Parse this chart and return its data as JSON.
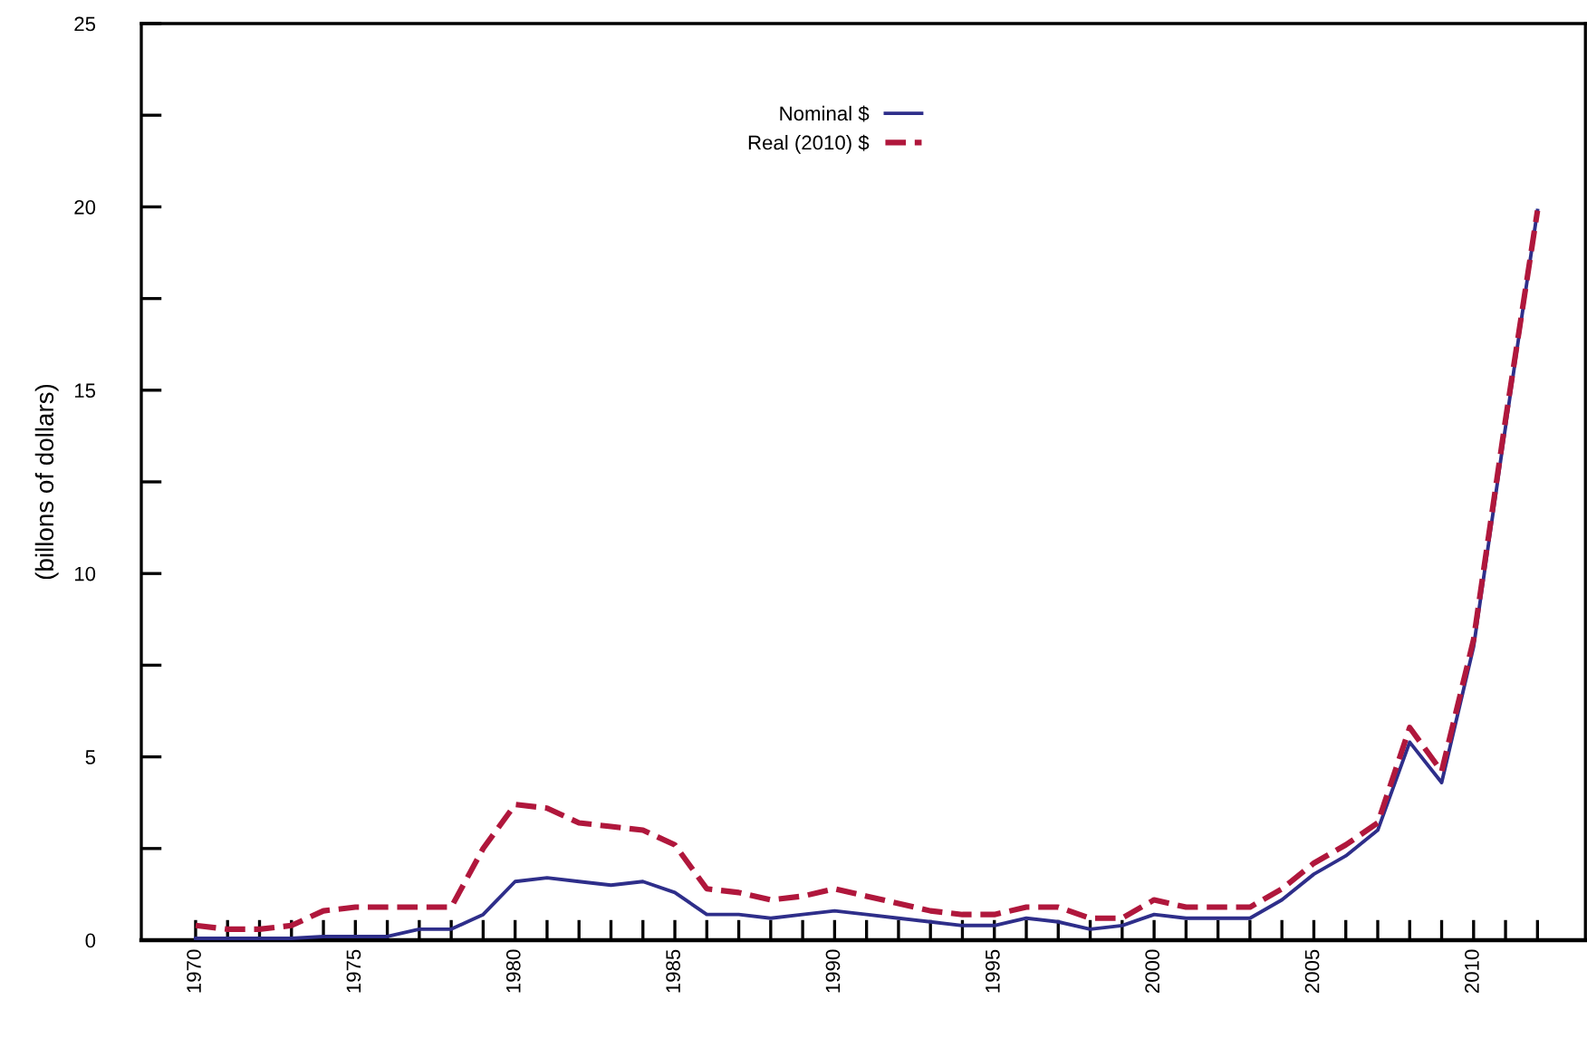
{
  "chart_data": {
    "type": "line",
    "ylabel": "(billons of dollars)",
    "legend": "top",
    "x": [
      1970,
      1971,
      1972,
      1973,
      1974,
      1975,
      1976,
      1977,
      1978,
      1979,
      1980,
      1981,
      1982,
      1983,
      1984,
      1985,
      1986,
      1987,
      1988,
      1989,
      1990,
      1991,
      1992,
      1993,
      1994,
      1995,
      1996,
      1997,
      1998,
      1999,
      2000,
      2001,
      2002,
      2003,
      2004,
      2005,
      2006,
      2007,
      2008,
      2009,
      2010,
      2011,
      2012
    ],
    "series": [
      {
        "name": "Nominal $",
        "color": "#2e2e8a",
        "line_style": "solid",
        "values": [
          0.05,
          0.05,
          0.05,
          0.05,
          0.1,
          0.1,
          0.1,
          0.3,
          0.3,
          0.7,
          1.6,
          1.7,
          1.6,
          1.5,
          1.6,
          1.3,
          0.7,
          0.7,
          0.6,
          0.7,
          0.8,
          0.7,
          0.6,
          0.5,
          0.4,
          0.4,
          0.6,
          0.5,
          0.3,
          0.4,
          0.7,
          0.6,
          0.6,
          0.6,
          1.1,
          1.8,
          2.3,
          3.0,
          5.4,
          4.3,
          8.0,
          14.0,
          19.9
        ]
      },
      {
        "name": "Real (2010) $",
        "color": "#b0173c",
        "line_style": "dashed",
        "values": [
          0.4,
          0.3,
          0.3,
          0.4,
          0.8,
          0.9,
          0.9,
          0.9,
          0.9,
          2.5,
          3.7,
          3.6,
          3.2,
          3.1,
          3.0,
          2.6,
          1.4,
          1.3,
          1.1,
          1.2,
          1.4,
          1.2,
          1.0,
          0.8,
          0.7,
          0.7,
          0.9,
          0.9,
          0.6,
          0.6,
          1.1,
          0.9,
          0.9,
          0.9,
          1.4,
          2.1,
          2.6,
          3.2,
          5.8,
          4.6,
          8.2,
          14.2,
          19.9
        ]
      }
    ],
    "xlim": [
      1968.3,
      2013.5
    ],
    "xticks": [
      1970,
      {
        "value": 1971,
        "label": null
      },
      {
        "value": 1972,
        "label": null
      },
      {
        "value": 1973,
        "label": null
      },
      {
        "value": 1974,
        "label": null
      },
      1975,
      {
        "value": 1976,
        "label": null
      },
      {
        "value": 1977,
        "label": null
      },
      {
        "value": 1978,
        "label": null
      },
      {
        "value": 1979,
        "label": null
      },
      1980,
      {
        "value": 1981,
        "label": null
      },
      {
        "value": 1982,
        "label": null
      },
      {
        "value": 1983,
        "label": null
      },
      {
        "value": 1984,
        "label": null
      },
      1985,
      {
        "value": 1986,
        "label": null
      },
      {
        "value": 1987,
        "label": null
      },
      {
        "value": 1988,
        "label": null
      },
      {
        "value": 1989,
        "label": null
      },
      1990,
      {
        "value": 1991,
        "label": null
      },
      {
        "value": 1992,
        "label": null
      },
      {
        "value": 1993,
        "label": null
      },
      {
        "value": 1994,
        "label": null
      },
      1995,
      {
        "value": 1996,
        "label": null
      },
      {
        "value": 1997,
        "label": null
      },
      {
        "value": 1998,
        "label": null
      },
      {
        "value": 1999,
        "label": null
      },
      2000,
      {
        "value": 2001,
        "label": null
      },
      {
        "value": 2002,
        "label": null
      },
      {
        "value": 2003,
        "label": null
      },
      {
        "value": 2004,
        "label": null
      },
      2005,
      {
        "value": 2006,
        "label": null
      },
      {
        "value": 2007,
        "label": null
      },
      {
        "value": 2008,
        "label": null
      },
      {
        "value": 2009,
        "label": null
      },
      2010,
      {
        "value": 2011,
        "label": null
      },
      {
        "value": 2012,
        "label": null
      }
    ],
    "ylim": [
      0,
      25
    ],
    "yticks": [
      0,
      {
        "value": 2.5,
        "label": null
      },
      5,
      {
        "value": 7.5,
        "label": null
      },
      10,
      {
        "value": 12.5,
        "label": null
      },
      15,
      {
        "value": 17.5,
        "label": null
      },
      20,
      {
        "value": 22.5,
        "label": null
      },
      25
    ],
    "grid": false
  }
}
